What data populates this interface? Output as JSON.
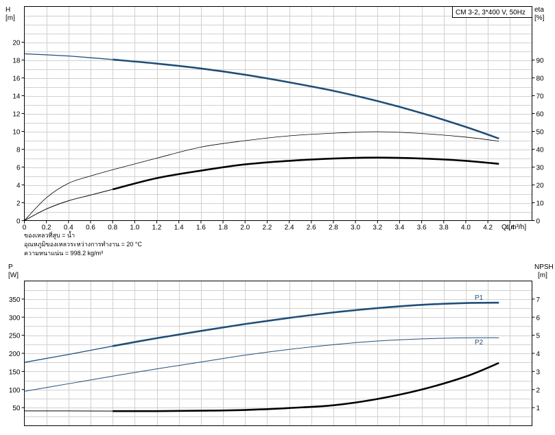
{
  "chart_data": [
    {
      "type": "line",
      "title": "CM 3-2, 3*400 V, 50Hz",
      "xlabel": "Q [m³/h]",
      "ylabel_left": "H",
      "ylabel_left_unit": "[m]",
      "ylabel_right": "eta",
      "ylabel_right_unit": "[%]",
      "xlim": [
        0,
        4.6
      ],
      "ylim_left": [
        0,
        24
      ],
      "ylim_right": [
        0,
        120
      ],
      "x_ticks": [
        "0",
        "0.2",
        "0.4",
        "0.6",
        "0.8",
        "1.0",
        "1.2",
        "1.4",
        "1.6",
        "1.8",
        "2.0",
        "2.2",
        "2.4",
        "2.6",
        "2.8",
        "3.0",
        "3.2",
        "3.4",
        "3.6",
        "3.8",
        "4.0",
        "4.2",
        "4.4"
      ],
      "y_ticks_left": [
        "0",
        "2",
        "4",
        "6",
        "8",
        "10",
        "12",
        "14",
        "16",
        "18",
        "20"
      ],
      "y_ticks_right": [
        "0",
        "10",
        "20",
        "30",
        "40",
        "50",
        "60",
        "70",
        "80",
        "90"
      ],
      "grid": true,
      "notes": [
        "ของเหลวที่สูบ = น้ำ",
        "อุณหภูมิของเหลวระหว่างการทำงาน = 20 °C",
        "ความหนาแน่น = 998.2 kg/m³"
      ],
      "series": [
        {
          "axis": "left",
          "color": "#1f4e79",
          "width_thin": 1.3,
          "width_bold": 2.6,
          "x": [
            0,
            0.4,
            0.8,
            1.2,
            1.6,
            2.0,
            2.4,
            2.8,
            3.2,
            3.6,
            4.0,
            4.3
          ],
          "y": [
            18.7,
            18.45,
            18.05,
            17.6,
            17.05,
            16.35,
            15.5,
            14.55,
            13.4,
            12.05,
            10.5,
            9.2
          ]
        },
        {
          "axis": "right",
          "color": "#000000",
          "width_thin": 0.8,
          "width_bold": 0.8,
          "x": [
            0,
            0.2,
            0.4,
            0.6,
            0.8,
            1.2,
            1.6,
            2.0,
            2.4,
            2.8,
            3.2,
            3.6,
            4.0,
            4.3
          ],
          "y": [
            0,
            12.8,
            20.9,
            25.0,
            28.5,
            35.0,
            41.2,
            44.8,
            47.5,
            49.0,
            49.8,
            48.8,
            46.8,
            44.5
          ]
        },
        {
          "axis": "right",
          "color": "#000000",
          "width_thin": 1.0,
          "width_bold": 2.6,
          "x": [
            0,
            0.2,
            0.4,
            0.6,
            0.8,
            1.2,
            1.6,
            2.0,
            2.4,
            2.8,
            3.2,
            3.6,
            4.0,
            4.3
          ],
          "y": [
            0,
            6.5,
            11.1,
            14.3,
            17.5,
            23.8,
            28.0,
            31.5,
            33.5,
            34.8,
            35.3,
            34.8,
            33.5,
            31.8
          ]
        }
      ],
      "bold_from_x": 0.8
    },
    {
      "type": "line",
      "xlim": [
        0,
        4.6
      ],
      "ylabel_left": "P",
      "ylabel_left_unit": "[W]",
      "ylabel_right": "NPSH",
      "ylabel_right_unit": "[m]",
      "ylim_left": [
        0,
        400
      ],
      "ylim_right": [
        0,
        8
      ],
      "y_ticks_left": [
        "50",
        "100",
        "150",
        "200",
        "250",
        "300",
        "350"
      ],
      "y_ticks_right": [
        "1",
        "2",
        "3",
        "4",
        "5",
        "6",
        "7"
      ],
      "grid": true,
      "series": [
        {
          "name": "P1",
          "axis": "left",
          "color": "#1f4e79",
          "width_thin": 1.3,
          "width_bold": 2.6,
          "x": [
            0,
            0.4,
            0.8,
            1.2,
            1.6,
            2.0,
            2.4,
            2.8,
            3.2,
            3.6,
            4.0,
            4.3
          ],
          "y": [
            175,
            197,
            220,
            242,
            262,
            281,
            298,
            313,
            325,
            334,
            339,
            340
          ]
        },
        {
          "name": "P2",
          "axis": "left",
          "color": "#1f4e79",
          "width_thin": 1.0,
          "width_bold": 1.0,
          "x": [
            0,
            0.4,
            0.8,
            1.2,
            1.6,
            2.0,
            2.4,
            2.8,
            3.2,
            3.6,
            4.0,
            4.3
          ],
          "y": [
            95,
            116,
            137,
            157,
            176,
            195,
            211,
            224,
            234,
            240,
            243,
            243
          ]
        },
        {
          "axis": "right",
          "color": "#000000",
          "width_thin": 1.0,
          "width_bold": 2.6,
          "x": [
            0,
            0.4,
            0.8,
            1.2,
            1.6,
            2.0,
            2.4,
            2.8,
            3.2,
            3.6,
            4.0,
            4.3
          ],
          "y": [
            0.82,
            0.82,
            0.81,
            0.81,
            0.83,
            0.87,
            0.98,
            1.13,
            1.48,
            2.0,
            2.72,
            3.47
          ]
        }
      ],
      "bold_from_x": 0.8
    }
  ]
}
